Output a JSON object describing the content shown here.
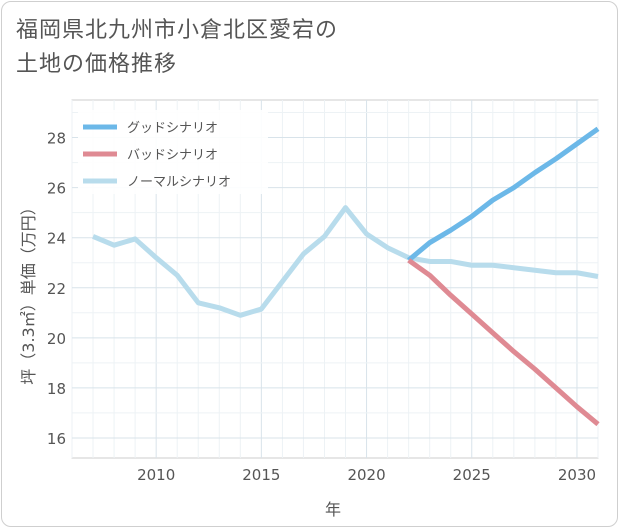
{
  "title_lines": [
    "福岡県北九州市小倉北区愛宕の",
    "土地の価格推移"
  ],
  "chart_data": {
    "type": "line",
    "title": "福岡県北九州市小倉北区愛宕の土地の価格推移",
    "xlabel": "年",
    "ylabel": "坪（3.3㎡）単価（万円）",
    "xlim": [
      2006,
      2031
    ],
    "ylim": [
      15.2,
      29.5
    ],
    "xticks": [
      2010,
      2015,
      2020,
      2025,
      2030
    ],
    "yticks": [
      16,
      18,
      20,
      22,
      24,
      26,
      28
    ],
    "grid": true,
    "legend_position": "top-left",
    "series": [
      {
        "name": "グッドシナリオ",
        "color": "#6cb8e8",
        "x": [
          2022,
          2023,
          2024,
          2025,
          2026,
          2027,
          2028,
          2029,
          2030,
          2031
        ],
        "values": [
          23.1,
          23.8,
          24.3,
          24.85,
          25.5,
          26.0,
          26.6,
          27.15,
          27.75,
          28.35
        ]
      },
      {
        "name": "バッドシナリオ",
        "color": "#df8a93",
        "x": [
          2022,
          2023,
          2024,
          2025,
          2026,
          2027,
          2028,
          2029,
          2030,
          2031
        ],
        "values": [
          23.1,
          22.5,
          21.7,
          20.95,
          20.2,
          19.45,
          18.75,
          18.0,
          17.25,
          16.55
        ]
      },
      {
        "name": "ノーマルシナリオ",
        "color": "#b8dcec",
        "x": [
          2007,
          2008,
          2009,
          2010,
          2011,
          2012,
          2013,
          2014,
          2015,
          2016,
          2017,
          2018,
          2019,
          2020,
          2021,
          2022,
          2023,
          2024,
          2025,
          2026,
          2027,
          2028,
          2029,
          2030,
          2031
        ],
        "values": [
          24.05,
          23.7,
          23.95,
          23.2,
          22.5,
          21.4,
          21.2,
          20.9,
          21.15,
          22.25,
          23.35,
          24.05,
          25.2,
          24.15,
          23.6,
          23.2,
          23.05,
          23.05,
          22.9,
          22.9,
          22.8,
          22.7,
          22.6,
          22.6,
          22.45
        ]
      }
    ]
  }
}
